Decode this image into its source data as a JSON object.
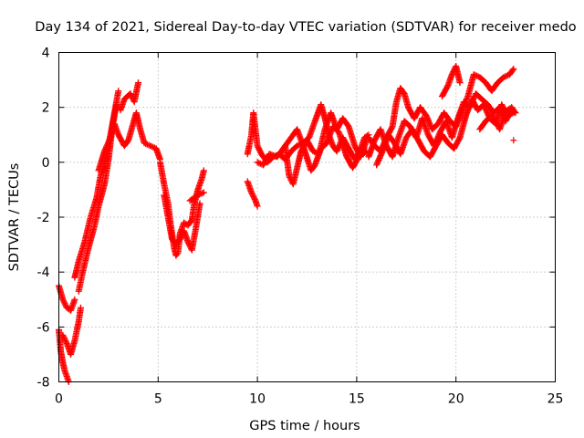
{
  "chart_data": {
    "type": "scatter",
    "title": "Day 134 of 2021, Sidereal Day-to-day VTEC variation (SDTVAR) for receiver medo",
    "xlabel": "GPS time / hours",
    "ylabel": "SDTVAR / TECUs",
    "xlim": [
      0,
      25
    ],
    "ylim": [
      -8,
      4
    ],
    "xticks": [
      0,
      5,
      10,
      15,
      20,
      25
    ],
    "yticks": [
      -8,
      -6,
      -4,
      -2,
      0,
      2,
      4
    ],
    "grid": true,
    "marker": "+",
    "color": "#ff0000",
    "series": [
      {
        "name": "SDTVAR",
        "segments": [
          [
            [
              0.0,
              -6.1
            ],
            [
              0.1,
              -6.9
            ],
            [
              0.2,
              -7.3
            ],
            [
              0.3,
              -7.6
            ],
            [
              0.4,
              -7.8
            ],
            [
              0.5,
              -8.0
            ]
          ],
          [
            [
              0.0,
              -4.5
            ],
            [
              0.2,
              -5.0
            ],
            [
              0.4,
              -5.3
            ],
            [
              0.6,
              -5.4
            ],
            [
              0.8,
              -5.0
            ]
          ],
          [
            [
              0.2,
              -6.3
            ],
            [
              0.4,
              -6.6
            ],
            [
              0.6,
              -7.0
            ],
            [
              0.8,
              -6.5
            ],
            [
              1.0,
              -5.8
            ],
            [
              1.1,
              -5.3
            ]
          ],
          [
            [
              0.8,
              -4.2
            ],
            [
              1.0,
              -3.6
            ],
            [
              1.3,
              -2.9
            ],
            [
              1.6,
              -2.0
            ],
            [
              1.9,
              -1.3
            ],
            [
              2.1,
              -0.5
            ],
            [
              2.4,
              0.2
            ],
            [
              2.6,
              1.0
            ],
            [
              2.8,
              1.8
            ],
            [
              3.0,
              2.6
            ]
          ],
          [
            [
              1.0,
              -4.7
            ],
            [
              1.2,
              -4.0
            ],
            [
              1.5,
              -3.1
            ],
            [
              1.8,
              -2.3
            ],
            [
              2.0,
              -1.6
            ],
            [
              2.3,
              -0.8
            ],
            [
              2.5,
              0.1
            ],
            [
              2.7,
              1.3
            ],
            [
              2.9,
              2.1
            ]
          ],
          [
            [
              2.0,
              -0.3
            ],
            [
              2.3,
              0.4
            ],
            [
              2.6,
              0.9
            ],
            [
              2.8,
              1.4
            ],
            [
              3.0,
              1.0
            ],
            [
              3.3,
              0.6
            ],
            [
              3.5,
              0.8
            ],
            [
              3.7,
              1.3
            ],
            [
              3.9,
              1.8
            ],
            [
              4.1,
              1.2
            ],
            [
              4.3,
              0.7
            ],
            [
              4.6,
              0.6
            ],
            [
              4.9,
              0.5
            ],
            [
              5.1,
              0.1
            ]
          ],
          [
            [
              3.1,
              1.9
            ],
            [
              3.3,
              2.3
            ],
            [
              3.6,
              2.5
            ],
            [
              3.8,
              2.2
            ],
            [
              4.0,
              2.9
            ]
          ],
          [
            [
              5.1,
              0.0
            ],
            [
              5.3,
              -0.8
            ],
            [
              5.5,
              -1.5
            ],
            [
              5.6,
              -2.1
            ],
            [
              5.7,
              -2.6
            ],
            [
              5.8,
              -3.1
            ],
            [
              5.9,
              -3.4
            ],
            [
              6.0,
              -3.3
            ],
            [
              6.1,
              -2.6
            ],
            [
              6.3,
              -2.2
            ],
            [
              6.5,
              -2.3
            ],
            [
              6.7,
              -2.1
            ],
            [
              6.8,
              -1.6
            ],
            [
              7.0,
              -1.0
            ],
            [
              7.2,
              -0.6
            ],
            [
              7.3,
              -0.3
            ]
          ],
          [
            [
              5.3,
              -1.2
            ],
            [
              5.5,
              -2.0
            ],
            [
              5.7,
              -2.8
            ],
            [
              5.9,
              -3.0
            ],
            [
              6.1,
              -2.8
            ],
            [
              6.3,
              -2.5
            ],
            [
              6.5,
              -2.9
            ],
            [
              6.7,
              -3.2
            ],
            [
              6.9,
              -2.4
            ],
            [
              7.1,
              -1.5
            ]
          ],
          [
            [
              6.6,
              -1.4
            ],
            [
              6.8,
              -1.3
            ],
            [
              7.0,
              -1.2
            ],
            [
              7.3,
              -1.1
            ]
          ],
          [
            [
              9.5,
              -0.7
            ],
            [
              9.7,
              -1.1
            ],
            [
              9.9,
              -1.4
            ],
            [
              10.0,
              -1.6
            ]
          ],
          [
            [
              9.5,
              0.3
            ],
            [
              9.7,
              1.0
            ],
            [
              9.8,
              1.8
            ],
            [
              9.9,
              1.2
            ],
            [
              10.0,
              0.6
            ],
            [
              10.2,
              0.3
            ],
            [
              10.5,
              0.0
            ],
            [
              10.8,
              0.2
            ],
            [
              11.1,
              0.3
            ],
            [
              11.4,
              0.1
            ],
            [
              11.7,
              0.4
            ],
            [
              12.0,
              0.6
            ],
            [
              12.3,
              0.7
            ],
            [
              12.6,
              0.9
            ],
            [
              12.9,
              1.5
            ],
            [
              13.2,
              2.1
            ],
            [
              13.4,
              1.6
            ],
            [
              13.6,
              1.0
            ],
            [
              13.8,
              0.6
            ],
            [
              14.0,
              0.4
            ],
            [
              14.3,
              0.9
            ],
            [
              14.6,
              0.5
            ],
            [
              14.9,
              0.1
            ],
            [
              15.2,
              0.5
            ],
            [
              15.4,
              0.9
            ],
            [
              15.6,
              1.0
            ]
          ],
          [
            [
              10.0,
              0.0
            ],
            [
              10.3,
              -0.1
            ],
            [
              10.6,
              0.3
            ],
            [
              11.0,
              0.2
            ],
            [
              11.3,
              0.5
            ],
            [
              11.7,
              0.9
            ],
            [
              12.0,
              1.2
            ],
            [
              12.3,
              0.6
            ],
            [
              12.7,
              -0.3
            ],
            [
              12.9,
              -0.1
            ],
            [
              13.2,
              0.5
            ],
            [
              13.5,
              0.7
            ],
            [
              13.8,
              1.3
            ],
            [
              14.1,
              1.1
            ],
            [
              14.5,
              0.2
            ],
            [
              14.8,
              -0.2
            ],
            [
              15.1,
              0.2
            ],
            [
              15.5,
              0.4
            ]
          ],
          [
            [
              11.4,
              0.6
            ],
            [
              11.6,
              -0.5
            ],
            [
              11.8,
              -0.8
            ],
            [
              12.0,
              -0.2
            ],
            [
              12.2,
              0.4
            ],
            [
              12.5,
              0.8
            ],
            [
              12.8,
              0.4
            ],
            [
              13.1,
              0.3
            ],
            [
              13.4,
              1.2
            ],
            [
              13.7,
              1.8
            ],
            [
              14.0,
              1.2
            ],
            [
              14.3,
              1.6
            ],
            [
              14.6,
              1.3
            ],
            [
              14.9,
              0.6
            ],
            [
              15.2,
              0.2
            ],
            [
              15.5,
              0.8
            ]
          ],
          [
            [
              15.6,
              0.9
            ],
            [
              15.9,
              0.6
            ],
            [
              16.2,
              0.4
            ],
            [
              16.5,
              0.9
            ],
            [
              16.8,
              1.3
            ],
            [
              17.0,
              2.2
            ],
            [
              17.2,
              2.7
            ],
            [
              17.4,
              2.5
            ],
            [
              17.6,
              2.0
            ],
            [
              17.9,
              1.6
            ],
            [
              18.2,
              2.0
            ],
            [
              18.5,
              1.7
            ],
            [
              18.8,
              1.2
            ],
            [
              19.1,
              1.4
            ],
            [
              19.4,
              1.8
            ],
            [
              19.7,
              1.5
            ],
            [
              20.0,
              1.3
            ],
            [
              20.3,
              1.9
            ],
            [
              20.6,
              2.4
            ],
            [
              20.9,
              3.2
            ],
            [
              21.2,
              3.1
            ],
            [
              21.5,
              2.9
            ],
            [
              21.8,
              2.6
            ],
            [
              22.1,
              2.9
            ],
            [
              22.4,
              3.1
            ],
            [
              22.7,
              3.2
            ],
            [
              22.9,
              3.4
            ]
          ],
          [
            [
              15.6,
              0.2
            ],
            [
              15.9,
              0.8
            ],
            [
              16.2,
              1.2
            ],
            [
              16.5,
              0.6
            ],
            [
              16.8,
              0.2
            ],
            [
              17.1,
              0.9
            ],
            [
              17.4,
              1.5
            ],
            [
              17.7,
              1.3
            ],
            [
              18.0,
              0.9
            ],
            [
              18.3,
              1.6
            ],
            [
              18.6,
              1.0
            ],
            [
              18.9,
              0.6
            ],
            [
              19.2,
              1.1
            ],
            [
              19.5,
              1.5
            ],
            [
              19.8,
              0.9
            ],
            [
              20.1,
              1.6
            ],
            [
              20.4,
              2.2
            ],
            [
              20.7,
              2.0
            ],
            [
              21.0,
              2.5
            ],
            [
              21.3,
              2.3
            ],
            [
              21.6,
              2.1
            ],
            [
              21.9,
              1.8
            ],
            [
              22.2,
              2.0
            ],
            [
              22.5,
              1.5
            ],
            [
              22.8,
              1.9
            ]
          ],
          [
            [
              16.0,
              -0.1
            ],
            [
              16.3,
              0.4
            ],
            [
              16.6,
              1.0
            ],
            [
              16.9,
              0.7
            ],
            [
              17.2,
              0.3
            ],
            [
              17.5,
              0.9
            ],
            [
              17.8,
              1.2
            ],
            [
              18.1,
              0.8
            ],
            [
              18.4,
              0.4
            ],
            [
              18.7,
              0.2
            ],
            [
              19.0,
              0.6
            ],
            [
              19.3,
              1.0
            ],
            [
              19.6,
              0.7
            ],
            [
              19.9,
              0.5
            ],
            [
              20.2,
              0.9
            ],
            [
              20.5,
              1.7
            ],
            [
              20.8,
              2.3
            ],
            [
              21.1,
              1.9
            ],
            [
              21.4,
              2.1
            ],
            [
              21.7,
              1.6
            ],
            [
              22.0,
              1.4
            ],
            [
              22.3,
              2.1
            ],
            [
              22.6,
              1.7
            ],
            [
              22.9,
              1.8
            ]
          ],
          [
            [
              19.3,
              2.4
            ],
            [
              19.6,
              2.8
            ],
            [
              19.8,
              3.2
            ],
            [
              20.0,
              3.5
            ],
            [
              20.2,
              2.9
            ]
          ],
          [
            [
              21.2,
              1.2
            ],
            [
              21.5,
              1.5
            ],
            [
              21.8,
              1.7
            ],
            [
              22.0,
              1.5
            ],
            [
              22.2,
              1.2
            ],
            [
              22.4,
              1.6
            ],
            [
              22.6,
              1.9
            ],
            [
              22.8,
              2.0
            ],
            [
              23.0,
              1.8
            ]
          ],
          [
            [
              22.9,
              0.8
            ]
          ]
        ]
      }
    ]
  }
}
